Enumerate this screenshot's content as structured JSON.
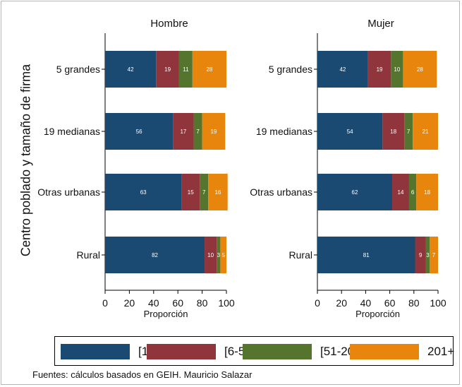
{
  "chart_data": {
    "type": "bar",
    "orientation": "horizontal",
    "stacked": true,
    "ylabel": "Centro poblado y tamaño de firma",
    "categories": [
      "5 grandes",
      "19 medianas",
      "Otras urbanas",
      "Rural"
    ],
    "xlim": [
      0,
      100
    ],
    "xticks": [
      0,
      20,
      40,
      60,
      80,
      100
    ],
    "grid": false,
    "legend_position": "bottom",
    "legend": [
      "[1-5]",
      "[6-50]",
      "[51-200]",
      "201+"
    ],
    "colors": [
      "#1a4a72",
      "#90353b",
      "#55752f",
      "#e8850c"
    ],
    "panels": [
      {
        "title": "Hombre",
        "xlabel": "Proporción",
        "series": [
          {
            "name": "[1-5]",
            "values": [
              42,
              56,
              63,
              82
            ]
          },
          {
            "name": "[6-50]",
            "values": [
              19,
              17,
              15,
              10
            ]
          },
          {
            "name": "[51-200]",
            "values": [
              11,
              7,
              7,
              3
            ]
          },
          {
            "name": "201+",
            "values": [
              28,
              19,
              16,
              5
            ]
          }
        ]
      },
      {
        "title": "Mujer",
        "xlabel": "Proporción",
        "series": [
          {
            "name": "[1-5]",
            "values": [
              42,
              54,
              62,
              81
            ]
          },
          {
            "name": "[6-50]",
            "values": [
              19,
              18,
              14,
              9
            ]
          },
          {
            "name": "[51-200]",
            "values": [
              10,
              7,
              6,
              3
            ]
          },
          {
            "name": "201+",
            "values": [
              28,
              21,
              18,
              7
            ]
          }
        ]
      }
    ]
  },
  "note": "Fuentes: cálculos basados en GEIH. Mauricio Salazar"
}
